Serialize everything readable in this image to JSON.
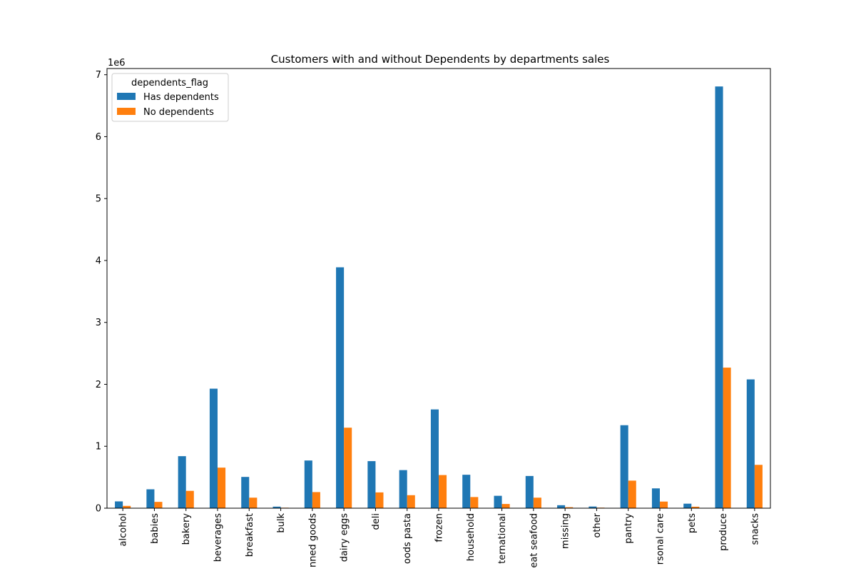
{
  "chart_data": {
    "type": "bar",
    "title": "Customers with and without Dependents by departments sales",
    "xlabel": "",
    "ylabel": "",
    "y_offset_label": "1e6",
    "ylim": [
      0,
      7100000
    ],
    "yticks": [
      0,
      1000000,
      2000000,
      3000000,
      4000000,
      5000000,
      6000000,
      7000000
    ],
    "ytick_labels": [
      "0",
      "1",
      "2",
      "3",
      "4",
      "5",
      "6",
      "7"
    ],
    "grid": false,
    "legend": {
      "title": "dependents_flag",
      "placement": "top-left"
    },
    "categories": [
      "alcohol",
      "babies",
      "bakery",
      "beverages",
      "breakfast",
      "bulk",
      "canned goods",
      "dairy eggs",
      "deli",
      "dry goods pasta",
      "frozen",
      "household",
      "international",
      "meat seafood",
      "missing",
      "other",
      "pantry",
      "personal care",
      "pets",
      "produce",
      "snacks"
    ],
    "category_labels_shown": [
      "alcohol",
      "babies",
      "bakery",
      "beverages",
      "breakfast",
      "bulk",
      "nned goods",
      "dairy eggs",
      "deli",
      "oods pasta",
      "frozen",
      "household",
      "ternational",
      "eat seafood",
      "missing",
      "other",
      "pantry",
      "rsonal care",
      "pets",
      "produce",
      "snacks"
    ],
    "series": [
      {
        "name": "Has dependents",
        "color": "#1f77b4",
        "values": [
          110000,
          305000,
          840000,
          1930000,
          505000,
          25000,
          770000,
          3890000,
          760000,
          615000,
          1595000,
          540000,
          200000,
          520000,
          48000,
          27000,
          1340000,
          320000,
          73000,
          6810000,
          2080000
        ]
      },
      {
        "name": "No dependents",
        "color": "#ff7f0e",
        "values": [
          37000,
          102000,
          280000,
          655000,
          170000,
          8000,
          260000,
          1300000,
          255000,
          210000,
          535000,
          180000,
          68000,
          170000,
          16000,
          9000,
          445000,
          107000,
          24000,
          2270000,
          700000
        ]
      }
    ]
  }
}
